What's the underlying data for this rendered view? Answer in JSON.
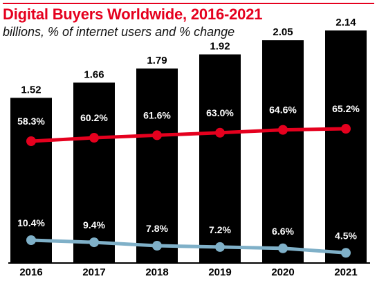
{
  "chart_data": {
    "type": "bar",
    "title": "Digital Buyers Worldwide, 2016-2021",
    "subtitle": "billions, % of internet users and % change",
    "categories": [
      "2016",
      "2017",
      "2018",
      "2019",
      "2020",
      "2021"
    ],
    "series": [
      {
        "values": [
          1.52,
          1.66,
          1.79,
          1.92,
          2.05,
          2.14
        ],
        "labels": [
          "1.52",
          "1.66",
          "1.79",
          "1.92",
          "2.05",
          "2.14"
        ],
        "color": "#000000",
        "kind": "bar"
      },
      {
        "values": [
          58.3,
          60.2,
          61.6,
          63.0,
          64.6,
          65.2
        ],
        "labels": [
          "58.3%",
          "60.2%",
          "61.6%",
          "63.0%",
          "64.6%",
          "65.2%"
        ],
        "color": "#e5001e",
        "kind": "line"
      },
      {
        "values": [
          10.4,
          9.4,
          7.8,
          7.2,
          6.6,
          4.5
        ],
        "labels": [
          "10.4%",
          "9.4%",
          "7.8%",
          "7.2%",
          "6.6%",
          "4.5%"
        ],
        "color": "#7fb0c8",
        "kind": "line"
      }
    ],
    "grid": false,
    "legend": "none"
  }
}
